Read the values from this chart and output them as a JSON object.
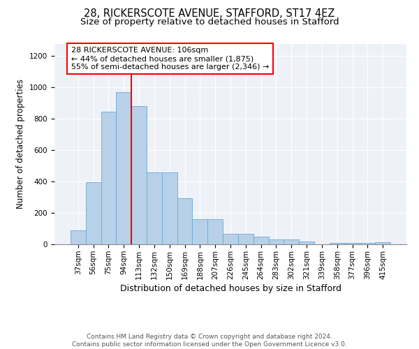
{
  "title1": "28, RICKERSCOTE AVENUE, STAFFORD, ST17 4EZ",
  "title2": "Size of property relative to detached houses in Stafford",
  "xlabel": "Distribution of detached houses by size in Stafford",
  "ylabel": "Number of detached properties",
  "categories": [
    "37sqm",
    "56sqm",
    "75sqm",
    "94sqm",
    "113sqm",
    "132sqm",
    "150sqm",
    "169sqm",
    "188sqm",
    "207sqm",
    "226sqm",
    "245sqm",
    "264sqm",
    "283sqm",
    "302sqm",
    "321sqm",
    "339sqm",
    "358sqm",
    "377sqm",
    "396sqm",
    "415sqm"
  ],
  "values": [
    90,
    395,
    845,
    970,
    880,
    460,
    460,
    295,
    160,
    160,
    65,
    65,
    50,
    30,
    30,
    18,
    0,
    10,
    10,
    10,
    15
  ],
  "bar_color": "#b8d0e8",
  "bar_edgecolor": "#6aaad4",
  "annotation_text": "28 RICKERSCOTE AVENUE: 106sqm\n← 44% of detached houses are smaller (1,875)\n55% of semi-detached houses are larger (2,346) →",
  "annotation_box_color": "white",
  "annotation_box_edgecolor": "red",
  "vline_color": "red",
  "vline_x": 3.5,
  "ylim": [
    0,
    1280
  ],
  "yticks": [
    0,
    200,
    400,
    600,
    800,
    1000,
    1200
  ],
  "background_color": "#eef2f8",
  "footer_text": "Contains HM Land Registry data © Crown copyright and database right 2024.\nContains public sector information licensed under the Open Government Licence v3.0.",
  "title1_fontsize": 10.5,
  "title2_fontsize": 9.5,
  "xlabel_fontsize": 9,
  "ylabel_fontsize": 8.5,
  "tick_fontsize": 7.5,
  "annotation_fontsize": 8,
  "footer_fontsize": 6.5
}
